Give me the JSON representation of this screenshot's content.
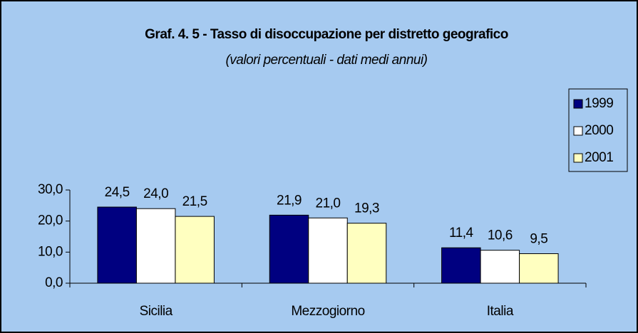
{
  "chart_data": {
    "type": "bar",
    "title": "Graf. 4. 5 - Tasso di disoccupazione per distretto geografico",
    "subtitle": "(valori percentuali - dati medi annui)",
    "categories": [
      "Sicilia",
      "Mezzogiorno",
      "Italia"
    ],
    "series": [
      {
        "name": "1999",
        "color": "#000080",
        "values": [
          24.5,
          21.9,
          11.4
        ],
        "value_labels": [
          "24,5",
          "21,9",
          "11,4"
        ]
      },
      {
        "name": "2000",
        "color": "#ffffff",
        "values": [
          24.0,
          21.0,
          10.6
        ],
        "value_labels": [
          "24,0",
          "21,0",
          "10,6"
        ]
      },
      {
        "name": "2001",
        "color": "#ffffc0",
        "values": [
          21.5,
          19.3,
          9.5
        ],
        "value_labels": [
          "21,5",
          "19,3",
          "9,5"
        ]
      }
    ],
    "ylim": [
      0,
      30
    ],
    "yticks": [
      {
        "value": 0,
        "label": "0,0"
      },
      {
        "value": 10,
        "label": "10,0"
      },
      {
        "value": 20,
        "label": "20,0"
      },
      {
        "value": 30,
        "label": "30,0"
      }
    ],
    "grid": false,
    "legend": "right"
  }
}
